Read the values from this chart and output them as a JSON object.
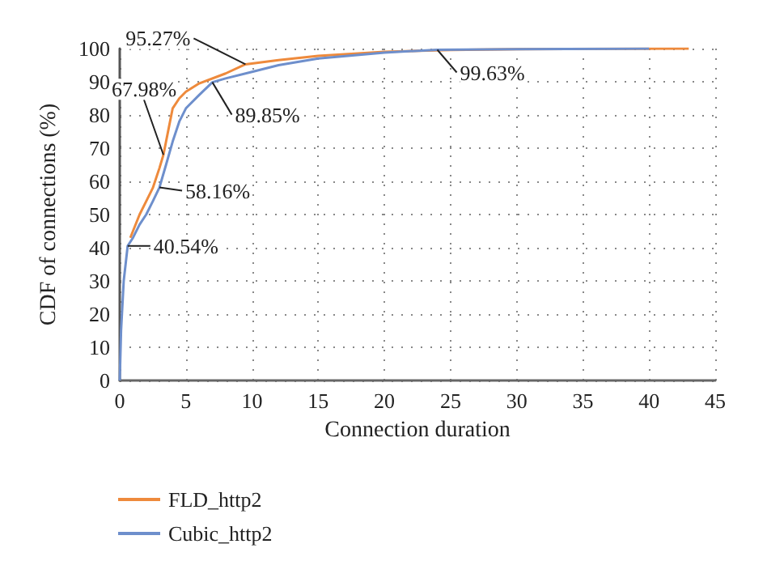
{
  "chart_data": {
    "type": "line",
    "xlabel": "Connection duration",
    "ylabel": "CDF of connections (%)",
    "xlim": [
      0,
      45
    ],
    "xticks": [
      0,
      5,
      10,
      15,
      20,
      25,
      30,
      35,
      40,
      45
    ],
    "ylim": [
      0,
      100
    ],
    "yticks": [
      0,
      10,
      20,
      30,
      40,
      50,
      60,
      70,
      80,
      90,
      100
    ],
    "grid": true,
    "legend": "bottom left",
    "marker": "none",
    "line_style": "solid",
    "series": [
      {
        "name": "FLD_http2",
        "color": "#ee8a3c",
        "x": [
          0.8,
          1,
          1.5,
          2,
          2.5,
          3,
          3.3,
          3.7,
          4,
          4.5,
          5,
          6,
          8,
          9.5,
          12,
          15,
          20,
          25,
          30,
          43
        ],
        "values": [
          43,
          45,
          50,
          54,
          58,
          64,
          67.98,
          76,
          82,
          85,
          87,
          89.5,
          92.5,
          95.27,
          96.5,
          97.8,
          99,
          99.6,
          99.8,
          100
        ]
      },
      {
        "name": "Cubic_http2",
        "color": "#6e8fcc",
        "x": [
          0,
          0.1,
          0.3,
          0.6,
          1,
          1.5,
          2,
          2.5,
          3,
          3.5,
          4,
          4.5,
          5,
          6,
          7,
          8,
          10,
          12,
          15,
          20,
          24,
          30,
          40
        ],
        "values": [
          0,
          15,
          30,
          40.54,
          43,
          47,
          50,
          54,
          58.16,
          65,
          72,
          78,
          82,
          86,
          89.85,
          91,
          93,
          95,
          97,
          98.8,
          99.63,
          99.8,
          100
        ]
      }
    ],
    "annotations": [
      {
        "text": "95.27%",
        "x": 9.5,
        "y": 95.27
      },
      {
        "text": "67.98%",
        "x": 3.3,
        "y": 67.98
      },
      {
        "text": "89.85%",
        "x": 7,
        "y": 89.85
      },
      {
        "text": "58.16%",
        "x": 3,
        "y": 58.16
      },
      {
        "text": "40.54%",
        "x": 0.6,
        "y": 40.54
      },
      {
        "text": "99.63%",
        "x": 24,
        "y": 99.63
      }
    ]
  }
}
